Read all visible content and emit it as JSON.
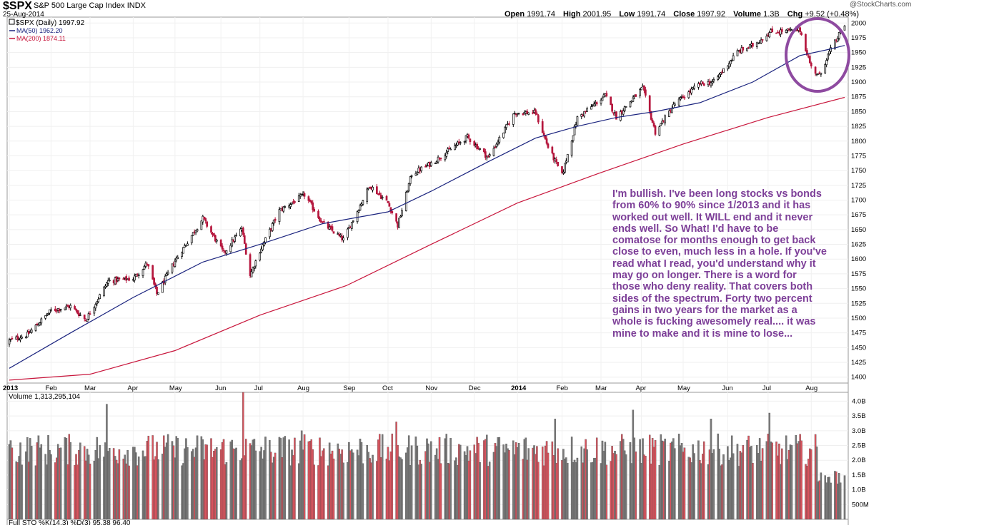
{
  "header": {
    "symbol": "$SPX",
    "name": "S&P 500 Large Cap Index",
    "exchange": "INDX",
    "date": "25-Aug-2014",
    "watermark": "@StockCharts.com",
    "open_label": "Open",
    "open_value": "1991.74",
    "high_label": "High",
    "high_value": "2001.95",
    "low_label": "Low",
    "low_value": "1991.74",
    "close_label": "Close",
    "close_value": "1997.92",
    "volume_label": "Volume",
    "volume_value": "1.3B",
    "chg_label": "Chg",
    "chg_value": "+9.52 (+0.48%)"
  },
  "legend": {
    "price": "$SPX (Daily) 1997.92",
    "ma50": "MA(50) 1962.20",
    "ma200": "MA(200) 1874.11"
  },
  "volume_panel": {
    "label": "Volume 1,313,295,104"
  },
  "bottom_panel": {
    "label": "Full STO %K(14,3) %D(3) 95.38 96.40"
  },
  "annotation": "I'm bullish.  I've been long stocks vs bonds from 60% to 90%  since 1/2013 and it has worked out well. It WILL end and it never ends well.  So What! I'd have to be comatose for months enough  to get back close to even, much less in a hole. If you've read what I read, you'd understand why it may go on longer. There is a word for those who deny reality. That covers both sides of the spectrum. Forty two percent gains in two years for the market as a whole is fucking awesomely real.... it was mine to make and it is mine to lose...",
  "colors": {
    "up": "#000000",
    "down": "#b5163d",
    "ma50": "#1a237e",
    "ma200": "#c8163c",
    "vol_up": "#7a7a7a",
    "vol_down": "#d9545e",
    "circle": "#8e4aa0",
    "annotation": "#7d3f98"
  },
  "chart_data": [
    {
      "type": "candlestick",
      "title": "$SPX (Daily)",
      "ylim": [
        1390,
        2010
      ],
      "y_ticks": [
        1400,
        1425,
        1450,
        1475,
        1500,
        1525,
        1550,
        1575,
        1600,
        1625,
        1650,
        1675,
        1700,
        1725,
        1750,
        1775,
        1800,
        1825,
        1850,
        1875,
        1900,
        1925,
        1950,
        1975,
        2000
      ],
      "x_labels": [
        "2013",
        "Feb",
        "Mar",
        "Apr",
        "May",
        "Jun",
        "Jul",
        "Aug",
        "Sep",
        "Oct",
        "Nov",
        "Dec",
        "2014",
        "Feb",
        "Mar",
        "Apr",
        "May",
        "Jun",
        "Jul",
        "Aug"
      ],
      "x": [
        "2013-01-02",
        "2013-01-15",
        "2013-02-01",
        "2013-02-15",
        "2013-02-26",
        "2013-03-14",
        "2013-04-01",
        "2013-04-11",
        "2013-04-18",
        "2013-05-01",
        "2013-05-21",
        "2013-06-05",
        "2013-06-18",
        "2013-06-24",
        "2013-07-01",
        "2013-07-15",
        "2013-08-02",
        "2013-08-15",
        "2013-08-30",
        "2013-09-18",
        "2013-10-01",
        "2013-10-08",
        "2013-10-18",
        "2013-11-01",
        "2013-11-27",
        "2013-12-12",
        "2013-12-31",
        "2014-01-15",
        "2014-01-24",
        "2014-02-03",
        "2014-02-14",
        "2014-03-06",
        "2014-03-14",
        "2014-04-02",
        "2014-04-11",
        "2014-04-25",
        "2014-05-13",
        "2014-05-23",
        "2014-06-09",
        "2014-06-20",
        "2014-07-03",
        "2014-07-24",
        "2014-08-01",
        "2014-08-07",
        "2014-08-13",
        "2014-08-25"
      ],
      "close": [
        1462,
        1472,
        1513,
        1520,
        1497,
        1563,
        1567,
        1593,
        1541,
        1597,
        1669,
        1610,
        1652,
        1573,
        1614,
        1682,
        1709,
        1661,
        1633,
        1725,
        1695,
        1657,
        1744,
        1762,
        1807,
        1772,
        1848,
        1848,
        1790,
        1742,
        1839,
        1877,
        1841,
        1890,
        1815,
        1863,
        1897,
        1900,
        1951,
        1962,
        1985,
        1988,
        1925,
        1910,
        1946,
        1997
      ],
      "series": [
        {
          "name": "MA(50)",
          "x": [
            "2013-01-02",
            "2013-02-15",
            "2013-04-01",
            "2013-05-21",
            "2013-07-01",
            "2013-08-15",
            "2013-10-01",
            "2013-11-01",
            "2013-12-12",
            "2014-01-15",
            "2014-02-14",
            "2014-03-14",
            "2014-04-11",
            "2014-05-13",
            "2014-06-20",
            "2014-07-24",
            "2014-08-13",
            "2014-08-25"
          ],
          "values": [
            1415,
            1475,
            1535,
            1595,
            1625,
            1660,
            1680,
            1715,
            1765,
            1805,
            1825,
            1840,
            1850,
            1865,
            1900,
            1945,
            1955,
            1962
          ]
        },
        {
          "name": "MA(200)",
          "x": [
            "2013-01-02",
            "2013-03-01",
            "2013-05-01",
            "2013-07-01",
            "2013-09-01",
            "2013-11-01",
            "2014-01-02",
            "2014-03-01",
            "2014-05-01",
            "2014-07-01",
            "2014-08-25"
          ],
          "values": [
            1395,
            1405,
            1445,
            1505,
            1555,
            1625,
            1695,
            1745,
            1795,
            1840,
            1874
          ]
        }
      ]
    },
    {
      "type": "bar",
      "title": "Volume",
      "ylim": [
        0,
        4300000000
      ],
      "y_ticks": [
        "4.0B",
        "3.5B",
        "3.0B",
        "2.5B",
        "2.0B",
        "1.5B",
        "1.0B",
        "500M"
      ],
      "last_value": 1313295104
    }
  ]
}
